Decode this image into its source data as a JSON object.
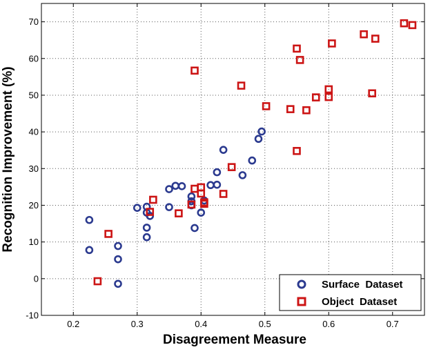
{
  "chart_data": {
    "type": "scatter",
    "xlabel": "Disagreement Measure",
    "ylabel": "Recognition Improvement (%)",
    "xlim": [
      0.15,
      0.75
    ],
    "ylim": [
      -10,
      75
    ],
    "x_ticks": [
      "0.2",
      "0.3",
      "0.4",
      "0.5",
      "0.6",
      "0.7"
    ],
    "y_ticks": [
      "-10",
      "0",
      "10",
      "20",
      "30",
      "40",
      "50",
      "60",
      "70"
    ],
    "grid": true,
    "legend_position": "bottom-right",
    "series": [
      {
        "name": "Surface  Dataset",
        "marker": "circle",
        "color": "#2b3a8f",
        "points": [
          [
            0.225,
            16.0
          ],
          [
            0.225,
            7.8
          ],
          [
            0.27,
            8.9
          ],
          [
            0.27,
            5.3
          ],
          [
            0.27,
            -1.4
          ],
          [
            0.3,
            19.3
          ],
          [
            0.315,
            19.6
          ],
          [
            0.315,
            18.0
          ],
          [
            0.315,
            13.9
          ],
          [
            0.315,
            11.3
          ],
          [
            0.32,
            17.1
          ],
          [
            0.35,
            24.4
          ],
          [
            0.35,
            19.5
          ],
          [
            0.36,
            25.3
          ],
          [
            0.37,
            25.2
          ],
          [
            0.385,
            22.4
          ],
          [
            0.385,
            21.1
          ],
          [
            0.385,
            20.0
          ],
          [
            0.39,
            13.8
          ],
          [
            0.4,
            18.0
          ],
          [
            0.405,
            21.3
          ],
          [
            0.415,
            25.5
          ],
          [
            0.425,
            29.0
          ],
          [
            0.425,
            25.6
          ],
          [
            0.435,
            35.1
          ],
          [
            0.465,
            28.2
          ],
          [
            0.48,
            32.2
          ],
          [
            0.49,
            38.1
          ],
          [
            0.495,
            40.1
          ]
        ]
      },
      {
        "name": "Object  Dataset",
        "marker": "square",
        "color": "#cc1414",
        "points": [
          [
            0.238,
            -0.7
          ],
          [
            0.255,
            12.2
          ],
          [
            0.32,
            18.2
          ],
          [
            0.325,
            21.5
          ],
          [
            0.365,
            17.8
          ],
          [
            0.385,
            20.2
          ],
          [
            0.39,
            24.5
          ],
          [
            0.39,
            56.7
          ],
          [
            0.4,
            24.9
          ],
          [
            0.4,
            23.2
          ],
          [
            0.405,
            20.8
          ],
          [
            0.405,
            20.4
          ],
          [
            0.435,
            23.1
          ],
          [
            0.448,
            30.4
          ],
          [
            0.463,
            52.6
          ],
          [
            0.502,
            47.0
          ],
          [
            0.54,
            46.2
          ],
          [
            0.55,
            62.7
          ],
          [
            0.55,
            34.8
          ],
          [
            0.555,
            59.6
          ],
          [
            0.565,
            45.9
          ],
          [
            0.58,
            49.4
          ],
          [
            0.6,
            51.6
          ],
          [
            0.6,
            49.5
          ],
          [
            0.605,
            64.1
          ],
          [
            0.655,
            66.6
          ],
          [
            0.668,
            50.5
          ],
          [
            0.673,
            65.4
          ],
          [
            0.718,
            69.6
          ],
          [
            0.731,
            69.1
          ]
        ]
      }
    ]
  }
}
